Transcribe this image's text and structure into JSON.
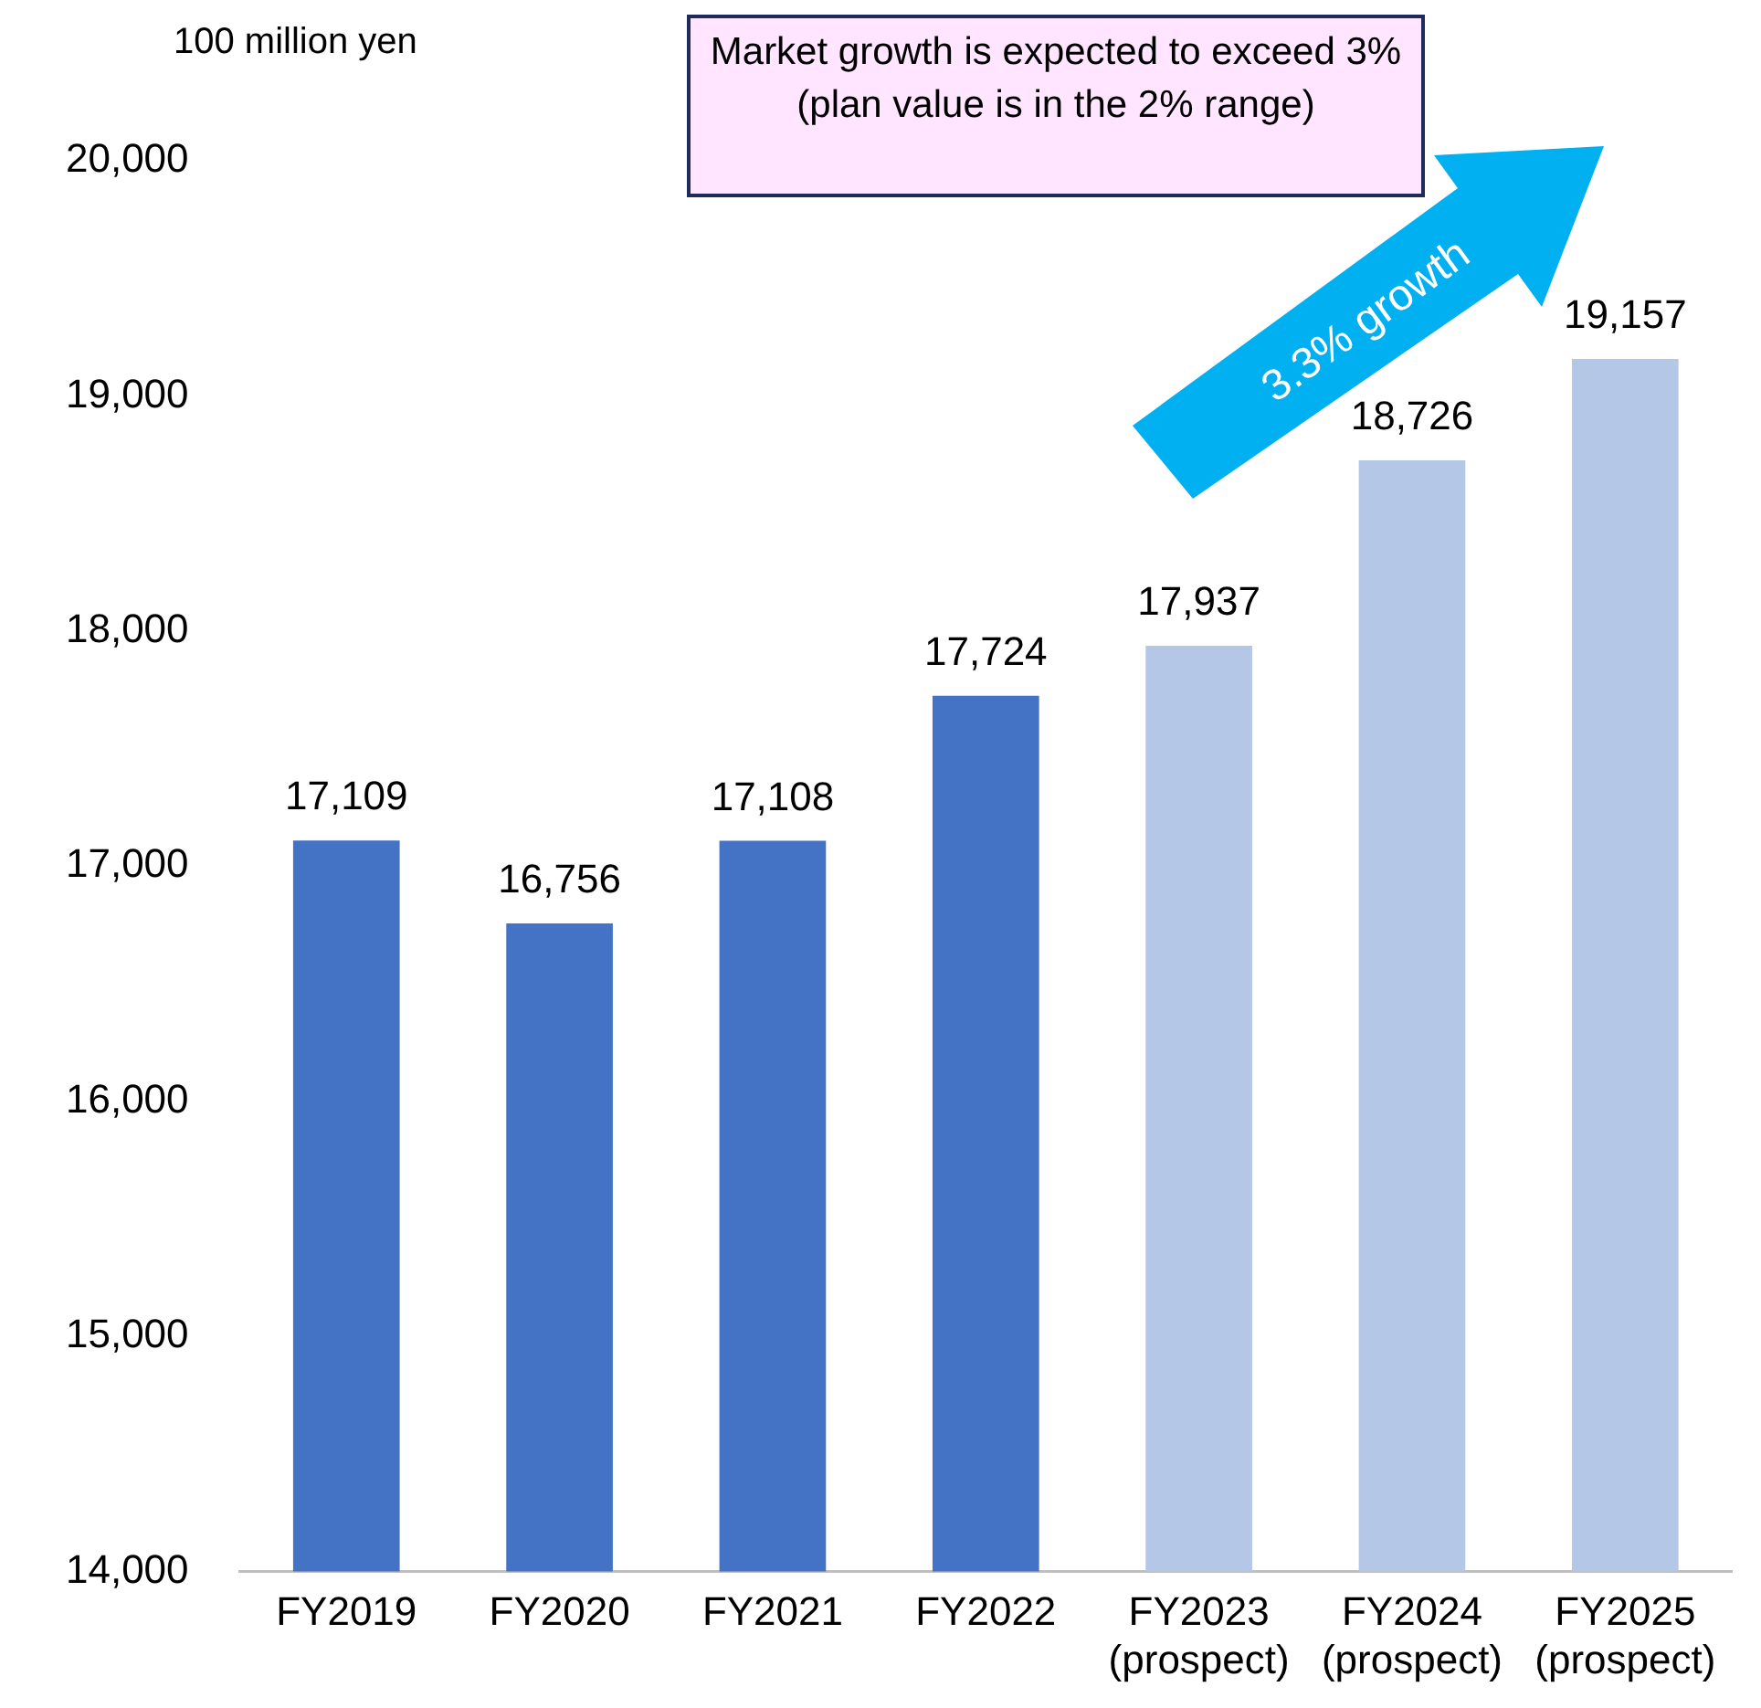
{
  "chart_data": {
    "type": "bar",
    "ylabel": "100 million yen",
    "categories": [
      "FY2019",
      "FY2020",
      "FY2021",
      "FY2022",
      "FY2023\n(prospect)",
      "FY2024\n(prospect)",
      "FY2025\n(prospect)"
    ],
    "values": [
      17109,
      16756,
      17108,
      17724,
      17937,
      18726,
      19157
    ],
    "colors": [
      "#4472c4",
      "#4472c4",
      "#4472c4",
      "#4472c4",
      "#b4c7e7",
      "#b4c7e7",
      "#b4c7e7"
    ],
    "value_labels": [
      "17,109",
      "16,756",
      "17,108",
      "17,724",
      "17,937",
      "18,726",
      "19,157"
    ],
    "ylim": [
      14000,
      20000
    ],
    "yticks": [
      {
        "value": 14000,
        "label": "14,000"
      },
      {
        "value": 15000,
        "label": "15,000"
      },
      {
        "value": 16000,
        "label": "16,000"
      },
      {
        "value": 17000,
        "label": "17,000"
      },
      {
        "value": 18000,
        "label": "18,000"
      },
      {
        "value": 19000,
        "label": "19,000"
      },
      {
        "value": 20000,
        "label": "20,000"
      }
    ],
    "grid": false,
    "legend": false,
    "annotations": [
      "Market growth is expected to exceed 3% (plan value is in the 2% range)",
      "3.3% growth"
    ]
  }
}
